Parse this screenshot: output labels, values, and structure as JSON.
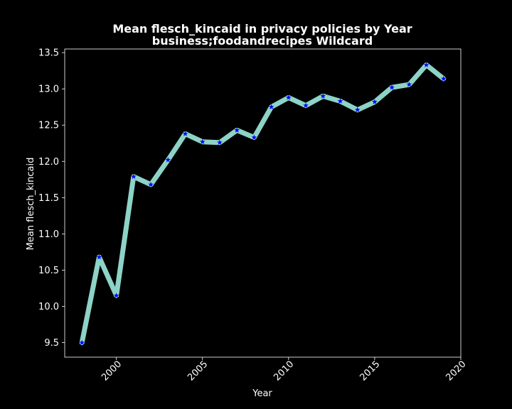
{
  "chart_data": {
    "type": "line",
    "title": "Mean flesch_kincaid in privacy policies by Year",
    "subtitle": "business;foodandrecipes Wildcard",
    "xlabel": "Year",
    "ylabel": "Mean flesch_kincaid",
    "xlim": [
      1997,
      2020
    ],
    "ylim": [
      9.3,
      13.55
    ],
    "xticks": [
      "2000",
      "2005",
      "2010",
      "2015",
      "2020"
    ],
    "yticks": [
      "9.5",
      "10.0",
      "10.5",
      "11.0",
      "11.5",
      "12.0",
      "12.5",
      "13.0",
      "13.5"
    ],
    "grid": false,
    "background": "#000000",
    "line_color": "#8dd3c7",
    "marker_color": "#0000ff",
    "marker": "star",
    "x": [
      1998,
      1999,
      2000,
      2001,
      2002,
      2003,
      2004,
      2005,
      2006,
      2007,
      2008,
      2009,
      2010,
      2011,
      2012,
      2013,
      2014,
      2015,
      2016,
      2017,
      2018,
      2019
    ],
    "values": [
      9.5,
      10.68,
      10.15,
      11.79,
      11.68,
      12.02,
      12.38,
      12.27,
      12.26,
      12.43,
      12.33,
      12.75,
      12.88,
      12.77,
      12.9,
      12.83,
      12.71,
      12.82,
      13.02,
      13.06,
      13.33,
      13.14
    ]
  }
}
